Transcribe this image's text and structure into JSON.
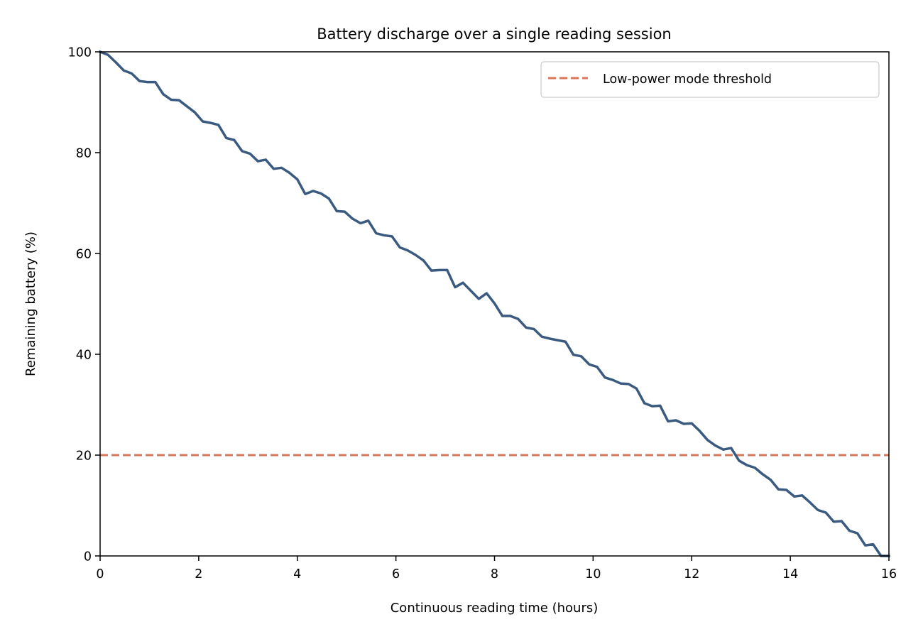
{
  "chart_data": {
    "type": "line",
    "title": "Battery discharge over a single reading session",
    "xlabel": "Continuous reading time (hours)",
    "ylabel": "Remaining battery (%)",
    "xlim": [
      0,
      16
    ],
    "ylim": [
      0,
      100
    ],
    "xticks": [
      0,
      2,
      4,
      6,
      8,
      10,
      12,
      14,
      16
    ],
    "yticks": [
      0,
      20,
      40,
      60,
      80,
      100
    ],
    "grid": false,
    "legend_position": "top-right",
    "series": [
      {
        "color": "#3a5a80",
        "x": [
          0.0,
          0.16,
          0.32,
          0.48,
          0.64,
          0.8,
          0.96,
          1.12,
          1.28,
          1.44,
          1.6,
          1.76,
          1.92,
          2.08,
          2.24,
          2.4,
          2.56,
          2.72,
          2.88,
          3.04,
          3.2,
          3.36,
          3.52,
          3.68,
          3.84,
          4.0,
          4.16,
          4.32,
          4.48,
          4.64,
          4.8,
          4.96,
          5.12,
          5.28,
          5.44,
          5.6,
          5.76,
          5.92,
          6.08,
          6.24,
          6.4,
          6.56,
          6.72,
          6.88,
          7.04,
          7.2,
          7.36,
          7.52,
          7.68,
          7.84,
          8.0,
          8.16,
          8.32,
          8.48,
          8.64,
          8.8,
          8.96,
          9.12,
          9.28,
          9.44,
          9.6,
          9.76,
          9.92,
          10.08,
          10.24,
          10.4,
          10.56,
          10.72,
          10.88,
          11.04,
          11.2,
          11.36,
          11.52,
          11.68,
          11.84,
          12.0,
          12.16,
          12.32,
          12.48,
          12.64,
          12.8,
          12.96,
          13.12,
          13.28,
          13.44,
          13.6,
          13.76,
          13.92,
          14.08,
          14.24,
          14.4,
          14.56,
          14.72,
          14.88,
          15.04,
          15.2,
          15.36,
          15.52,
          15.68,
          15.84,
          16.0
        ],
        "values": [
          100.0,
          99.4,
          97.9,
          96.3,
          95.7,
          94.2,
          94.0,
          94.0,
          91.6,
          90.5,
          90.4,
          89.2,
          88.0,
          86.2,
          85.9,
          85.5,
          82.9,
          82.5,
          80.3,
          79.8,
          78.3,
          78.6,
          76.8,
          77.0,
          76.0,
          74.7,
          71.8,
          72.4,
          71.9,
          70.9,
          68.4,
          68.3,
          66.9,
          66.0,
          66.5,
          64.0,
          63.6,
          63.4,
          61.2,
          60.6,
          59.7,
          58.6,
          56.6,
          56.7,
          56.7,
          53.3,
          54.2,
          52.6,
          51.0,
          52.1,
          50.1,
          47.6,
          47.6,
          47.0,
          45.3,
          45.0,
          43.5,
          43.1,
          42.8,
          42.5,
          39.9,
          39.6,
          38.0,
          37.5,
          35.4,
          34.9,
          34.2,
          34.1,
          33.2,
          30.3,
          29.7,
          29.8,
          26.7,
          26.9,
          26.2,
          26.3,
          24.8,
          23.0,
          21.9,
          21.1,
          21.4,
          18.9,
          18.0,
          17.5,
          16.2,
          15.1,
          13.2,
          13.1,
          11.8,
          12.0,
          10.6,
          9.1,
          8.6,
          6.8,
          6.9,
          5.0,
          4.5,
          2.1,
          2.3,
          0.0,
          0.0
        ]
      }
    ],
    "threshold": {
      "name": "Low-power mode threshold",
      "value": 20,
      "color": "#d9775a",
      "style": "dashed"
    }
  }
}
